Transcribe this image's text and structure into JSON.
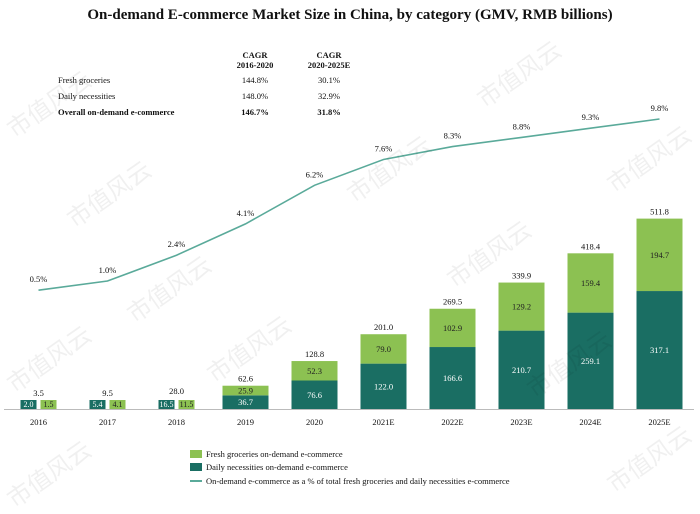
{
  "chart_data": {
    "type": "bar+line",
    "title": "On-demand E-commerce Market Size in China, by category (GMV, RMB billions)",
    "categories": [
      "2016",
      "2017",
      "2018",
      "2019",
      "2020",
      "2021E",
      "2022E",
      "2023E",
      "2024E",
      "2025E"
    ],
    "series": [
      {
        "name": "Daily necessities on-demand e-commerce",
        "kind": "stacked-bar",
        "color": "#1a6e63",
        "values": [
          2.0,
          5.4,
          16.5,
          36.7,
          76.6,
          122.0,
          166.6,
          210.7,
          259.1,
          317.1
        ],
        "labels": [
          "2.0",
          "5.4",
          "16.5",
          "36.7",
          "76.6",
          "122.0",
          "166.6",
          "210.7",
          "259.1",
          "317.1"
        ]
      },
      {
        "name": "Fresh groceries on-demand e-commerce",
        "kind": "stacked-bar",
        "color": "#8cc152",
        "values": [
          1.5,
          4.1,
          11.5,
          25.9,
          52.3,
          79.0,
          102.9,
          129.2,
          159.4,
          194.7
        ],
        "labels": [
          "1.5",
          "4.1",
          "11.5",
          "25.9",
          "52.3",
          "79.0",
          "102.9",
          "129.2",
          "159.4",
          "194.7"
        ]
      },
      {
        "name": "On-demand e-commerce as a % of total fresh groceries and daily necessities e-commerce",
        "kind": "line",
        "color": "#5aaa9a",
        "values": [
          0.5,
          1.0,
          2.4,
          4.1,
          6.2,
          7.6,
          8.3,
          8.8,
          9.3,
          9.8
        ],
        "labels": [
          "0.5%",
          "1.0%",
          "2.4%",
          "4.1%",
          "6.2%",
          "7.6%",
          "8.3%",
          "8.8%",
          "9.3%",
          "9.8%"
        ]
      }
    ],
    "totals": [
      3.5,
      9.5,
      28.0,
      62.6,
      128.8,
      201.0,
      269.5,
      339.9,
      418.4,
      511.8
    ],
    "total_labels": [
      "3.5",
      "9.5",
      "28.0",
      "62.6",
      "128.8",
      "201.0",
      "269.5",
      "339.9",
      "418.4",
      "511.8"
    ],
    "legend": [
      {
        "label": "Fresh groceries on-demand e-commerce",
        "color": "#8cc152",
        "shape": "box"
      },
      {
        "label": "Daily necessities on-demand e-commerce",
        "color": "#1a6e63",
        "shape": "box"
      },
      {
        "label": "On-demand e-commerce as a % of total fresh groceries and daily necessities e-commerce",
        "color": "#5aaa9a",
        "shape": "line"
      }
    ],
    "legend_position": "bottom-center",
    "bar_ylim": [
      0,
      520
    ],
    "line_ylim": [
      0,
      10
    ],
    "cagr_table": {
      "col1_header": [
        "CAGR",
        "2016-2020"
      ],
      "col2_header": [
        "CAGR",
        "2020-2025E"
      ],
      "rows": [
        {
          "label": "Fresh groceries",
          "c1": "144.8%",
          "c2": "30.1%",
          "bold": false
        },
        {
          "label": "Daily necessities",
          "c1": "148.0%",
          "c2": "32.9%",
          "bold": false
        },
        {
          "label": "Overall on-demand e-commerce",
          "c1": "146.7%",
          "c2": "31.8%",
          "bold": true
        }
      ]
    }
  },
  "watermark": "市值风云"
}
